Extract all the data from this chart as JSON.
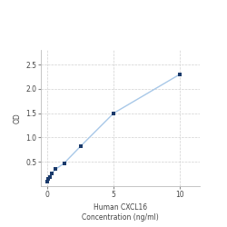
{
  "x_values": [
    0.0,
    0.078,
    0.156,
    0.313,
    0.625,
    1.25,
    2.5,
    5.0,
    10.0
  ],
  "y_values": [
    0.1,
    0.15,
    0.19,
    0.26,
    0.35,
    0.47,
    0.82,
    1.5,
    2.3
  ],
  "xlabel_line1": "Human CXCL16",
  "xlabel_line2": "Concentration (ng/ml)",
  "ylabel": "OD",
  "xlim": [
    -0.5,
    11.5
  ],
  "ylim": [
    0.0,
    2.8
  ],
  "yticks": [
    0.5,
    1.0,
    1.5,
    2.0,
    2.5
  ],
  "xticks": [
    0,
    5,
    10
  ],
  "line_color": "#a8c8e8",
  "marker_color": "#1a3a6b",
  "marker_style": "s",
  "marker_size": 3.5,
  "line_width": 1.0,
  "grid_color": "#d0d0d0",
  "grid_linestyle": "--",
  "bg_color": "#ffffff",
  "tick_fontsize": 5.5,
  "label_fontsize": 5.5
}
